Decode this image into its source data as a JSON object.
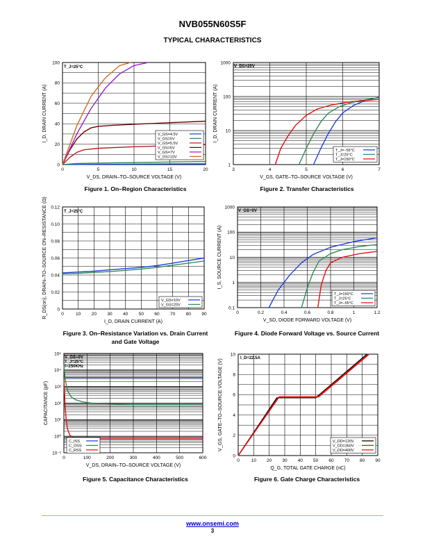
{
  "document": {
    "part_number": "NVB055N60S5F",
    "section_title": "TYPICAL CHARACTERISTICS",
    "footer_link": "www.onsemi.com",
    "page_number": "3"
  },
  "chart_data": [
    {
      "id": "fig1",
      "type": "line",
      "caption": "Figure 1. On–Region Characteristics",
      "xlabel": "V_DS, DRAIN–TO–SOURCE VOLTAGE (V)",
      "ylabel": "I_D, DRAIN CURRENT (A)",
      "xscale": "linear",
      "yscale": "linear",
      "xlim": [
        0,
        20
      ],
      "ylim": [
        0,
        100
      ],
      "xticks": [
        0,
        5,
        10,
        15,
        20
      ],
      "yticks": [
        0,
        20,
        40,
        60,
        80,
        100
      ],
      "xtick_labels": [
        "0",
        "5",
        "10",
        "15",
        "20"
      ],
      "ytick_labels": [
        "0",
        "20",
        "40",
        "60",
        "80",
        "100"
      ],
      "grid": true,
      "annotations": [
        "T_J=25°C"
      ],
      "legend_position": "bottom-right",
      "series": [
        {
          "name": "V_GS=4.5V",
          "color": "#1f40e0",
          "x": [
            0,
            5,
            10,
            15,
            20
          ],
          "y": [
            0,
            0.3,
            0.5,
            0.6,
            0.7
          ]
        },
        {
          "name": "V_GS=5V",
          "color": "#2e8b57",
          "x": [
            0,
            2,
            5,
            10,
            15,
            20
          ],
          "y": [
            0,
            1,
            1.5,
            2,
            2.5,
            3
          ]
        },
        {
          "name": "V_GS=5.5V",
          "color": "#b22222",
          "x": [
            0,
            1,
            2,
            3,
            5,
            10,
            15,
            20
          ],
          "y": [
            0,
            7,
            12,
            14.5,
            16,
            17.5,
            18.5,
            19.5
          ]
        },
        {
          "name": "V_GS=6V",
          "color": "#6b0000",
          "x": [
            0,
            1,
            2,
            3,
            4,
            5,
            7,
            10,
            15,
            20
          ],
          "y": [
            0,
            14,
            25,
            32,
            36,
            37.5,
            38.5,
            39.5,
            41,
            42.5
          ]
        },
        {
          "name": "V_GS=7V",
          "color": "#9b20d0",
          "x": [
            0,
            2,
            4,
            6,
            8,
            10,
            12
          ],
          "y": [
            0,
            30,
            55,
            75,
            89,
            97,
            100
          ]
        },
        {
          "name": "V_GS=10V",
          "color": "#d2691e",
          "x": [
            0,
            2,
            4,
            6,
            8,
            9.5
          ],
          "y": [
            0,
            38,
            67,
            85,
            97,
            100
          ]
        }
      ]
    },
    {
      "id": "fig2",
      "type": "line",
      "caption": "Figure 2. Transfer Characteristics",
      "xlabel": "V_GS, GATE–TO–SOURCE VOLTAGE (V)",
      "ylabel": "I_D, DRAIN CURRENT (A)",
      "xscale": "linear",
      "yscale": "log",
      "xlim": [
        3,
        7
      ],
      "ylim": [
        1,
        1000
      ],
      "xticks": [
        3,
        4,
        5,
        6,
        7
      ],
      "yticks": [
        1,
        10,
        100,
        1000
      ],
      "xtick_labels": [
        "3",
        "4",
        "5",
        "6",
        "7"
      ],
      "ytick_labels": [
        "1",
        "10",
        "100",
        "1000"
      ],
      "grid": true,
      "annotations": [
        "V_DS=20V"
      ],
      "legend_position": "bottom-right",
      "series": [
        {
          "name": "T_J=−55°C",
          "color": "#1f40e0",
          "x": [
            5.2,
            5.4,
            5.6,
            5.8,
            6.0,
            6.3,
            6.6,
            7.0
          ],
          "y": [
            1,
            3,
            8,
            18,
            33,
            55,
            75,
            95
          ]
        },
        {
          "name": "T_J=25°C",
          "color": "#2e8b57",
          "x": [
            4.8,
            5.0,
            5.2,
            5.4,
            5.6,
            5.9,
            6.2,
            6.6,
            7.0
          ],
          "y": [
            1,
            3,
            8,
            18,
            32,
            50,
            65,
            80,
            92
          ]
        },
        {
          "name": "T_J=150°C",
          "color": "#e01010",
          "x": [
            4.15,
            4.3,
            4.5,
            4.7,
            5.0,
            5.3,
            5.7,
            6.2,
            7.0
          ],
          "y": [
            1,
            3,
            7,
            14,
            28,
            43,
            57,
            70,
            82
          ]
        }
      ]
    },
    {
      "id": "fig3",
      "type": "line",
      "caption": "Figure 3. On–Resistance Variation vs. Drain Current and Gate Voltage",
      "xlabel": "I_D, DRAIN CURRENT (A)",
      "ylabel": "R_DS(on), DRAIN–TO–SOURCE ON–RESISTANCE (Ω)",
      "xscale": "linear",
      "yscale": "linear",
      "xlim": [
        0,
        90
      ],
      "ylim": [
        0,
        0.12
      ],
      "xticks": [
        0,
        10,
        20,
        30,
        40,
        50,
        60,
        70,
        80,
        90
      ],
      "yticks": [
        0,
        0.02,
        0.04,
        0.06,
        0.08,
        0.1,
        0.12
      ],
      "xtick_labels": [
        "0",
        "10",
        "20",
        "30",
        "40",
        "50",
        "60",
        "70",
        "80",
        "90"
      ],
      "ytick_labels": [
        "0",
        "0.02",
        "0.04",
        "0.06",
        "0.08",
        "0.10",
        "0.12"
      ],
      "grid": true,
      "annotations": [
        "T_J=25°C"
      ],
      "legend_position": "bottom-right",
      "series": [
        {
          "name": "V_GS=10V",
          "color": "#1f40e0",
          "x": [
            0,
            10,
            20,
            30,
            40,
            50,
            60,
            70,
            80,
            90
          ],
          "y": [
            0.0425,
            0.0435,
            0.0445,
            0.046,
            0.0475,
            0.049,
            0.051,
            0.054,
            0.057,
            0.06
          ]
        },
        {
          "name": "V_GS=20V",
          "color": "#2e8b57",
          "x": [
            0,
            10,
            20,
            30,
            40,
            50,
            60,
            70,
            80,
            90
          ],
          "y": [
            0.0415,
            0.042,
            0.043,
            0.044,
            0.0455,
            0.047,
            0.049,
            0.0515,
            0.054,
            0.0565
          ]
        }
      ]
    },
    {
      "id": "fig4",
      "type": "line",
      "caption": "Figure 4. Diode Forward Voltage vs. Source Current",
      "xlabel": "V_SD, DIODE FORWARD VOLTAGE (V)",
      "ylabel": "I_S, SOURCE CURRENT (A)",
      "xscale": "linear",
      "yscale": "log",
      "xlim": [
        0,
        1.2
      ],
      "ylim": [
        0.1,
        1000
      ],
      "xticks": [
        0,
        0.2,
        0.4,
        0.6,
        0.8,
        1,
        1.2
      ],
      "yticks": [
        0.1,
        1,
        10,
        100,
        1000
      ],
      "xtick_labels": [
        "0",
        "0.2",
        "0.4",
        "0.6",
        "0.8",
        "1",
        "1.2"
      ],
      "ytick_labels": [
        "0.1",
        "1",
        "10",
        "100",
        "1000"
      ],
      "grid": true,
      "annotations": [
        "V_GS=0V"
      ],
      "legend_position": "bottom-right",
      "series": [
        {
          "name": "T_J=150°C",
          "color": "#1f40e0",
          "x": [
            0.27,
            0.35,
            0.45,
            0.55,
            0.65,
            0.8,
            1.0,
            1.2
          ],
          "y": [
            0.1,
            0.5,
            2,
            6,
            13,
            25,
            42,
            60
          ]
        },
        {
          "name": "T_J=25°C",
          "color": "#2e8b57",
          "x": [
            0.55,
            0.6,
            0.65,
            0.7,
            0.8,
            0.9,
            1.05,
            1.2
          ],
          "y": [
            0.1,
            0.6,
            2.5,
            7,
            14,
            20,
            27,
            32
          ]
        },
        {
          "name": "T_J=−55°C",
          "color": "#e01010",
          "x": [
            0.69,
            0.72,
            0.76,
            0.8,
            0.9,
            1.05,
            1.2
          ],
          "y": [
            0.1,
            0.8,
            3,
            6,
            10,
            14,
            17
          ]
        }
      ]
    },
    {
      "id": "fig5",
      "type": "line",
      "caption": "Figure 5. Capacitance Characteristics",
      "xlabel": "V_DS, DRAIN–TO–SOURCE VOLTAGE (V)",
      "ylabel": "CAPACITANCE (pF)",
      "xscale": "linear",
      "yscale": "log",
      "xlim": [
        0,
        600
      ],
      "ylim": [
        0.1,
        100000
      ],
      "xticks": [
        0,
        100,
        200,
        300,
        400,
        500,
        600
      ],
      "yticks": [
        0.1,
        1,
        10,
        100,
        1000,
        10000,
        100000
      ],
      "xtick_labels": [
        "0",
        "100",
        "200",
        "300",
        "400",
        "500",
        "600"
      ],
      "ytick_labels": [
        "10⁻¹",
        "10⁰",
        "10¹",
        "10²",
        "10³",
        "10⁴",
        "10⁵"
      ],
      "grid": true,
      "annotations": [
        "V_GS=0V",
        "T_J=25°C",
        "f=250KHz"
      ],
      "legend_position": "bottom-left",
      "series": [
        {
          "name": "C_ISS",
          "color": "#1f40e0",
          "x": [
            0,
            100,
            200,
            300,
            400,
            500,
            600
          ],
          "y": [
            3500,
            3500,
            3500,
            3500,
            3500,
            3500,
            3500
          ]
        },
        {
          "name": "C_OSS",
          "color": "#2e8b57",
          "x": [
            0,
            5,
            15,
            30,
            50,
            80,
            120,
            200,
            300,
            400,
            500,
            600
          ],
          "y": [
            20000,
            3000,
            600,
            250,
            160,
            120,
            100,
            90,
            85,
            85,
            85,
            85
          ]
        },
        {
          "name": "C_RSS",
          "color": "#e01010",
          "x": [
            0,
            5,
            10,
            15,
            25,
            40,
            70,
            100,
            200,
            300,
            400,
            500,
            600
          ],
          "y": [
            3000,
            80,
            10,
            3,
            1.2,
            0.8,
            0.7,
            0.7,
            0.7,
            0.7,
            0.7,
            0.7,
            0.7
          ]
        }
      ]
    },
    {
      "id": "fig6",
      "type": "line",
      "caption": "Figure 6. Gate Charge Characteristics",
      "xlabel": "Q_G, TOTAL GATE CHARGE (nC)",
      "ylabel": "V_GS, GATE–TO–SOURCE VOLTAGE (V)",
      "xscale": "linear",
      "yscale": "linear",
      "xlim": [
        0,
        90
      ],
      "ylim": [
        0,
        10
      ],
      "xticks": [
        0,
        10,
        20,
        30,
        40,
        50,
        60,
        70,
        80,
        90
      ],
      "yticks": [
        0,
        2,
        4,
        6,
        8,
        10
      ],
      "xtick_labels": [
        "0",
        "10",
        "20",
        "30",
        "40",
        "50",
        "60",
        "70",
        "80",
        "90"
      ],
      "ytick_labels": [
        "0",
        "2",
        "4",
        "6",
        "8",
        "10"
      ],
      "grid": true,
      "annotations": [
        "I_D=22.5A"
      ],
      "legend_position": "bottom-right",
      "series": [
        {
          "name": "V_DD=120V",
          "color": "#000000",
          "x": [
            0,
            25,
            50,
            83
          ],
          "y": [
            0,
            5.7,
            5.7,
            10
          ]
        },
        {
          "name": "V_DD=360V",
          "color": "#e01010",
          "x": [
            0,
            26,
            51,
            84
          ],
          "y": [
            0,
            5.75,
            5.75,
            10
          ]
        },
        {
          "name": "V_DD=400V",
          "color": "#e01010",
          "x": [
            0,
            26.5,
            52,
            84.5
          ],
          "y": [
            0,
            5.8,
            5.8,
            10
          ]
        }
      ]
    }
  ]
}
